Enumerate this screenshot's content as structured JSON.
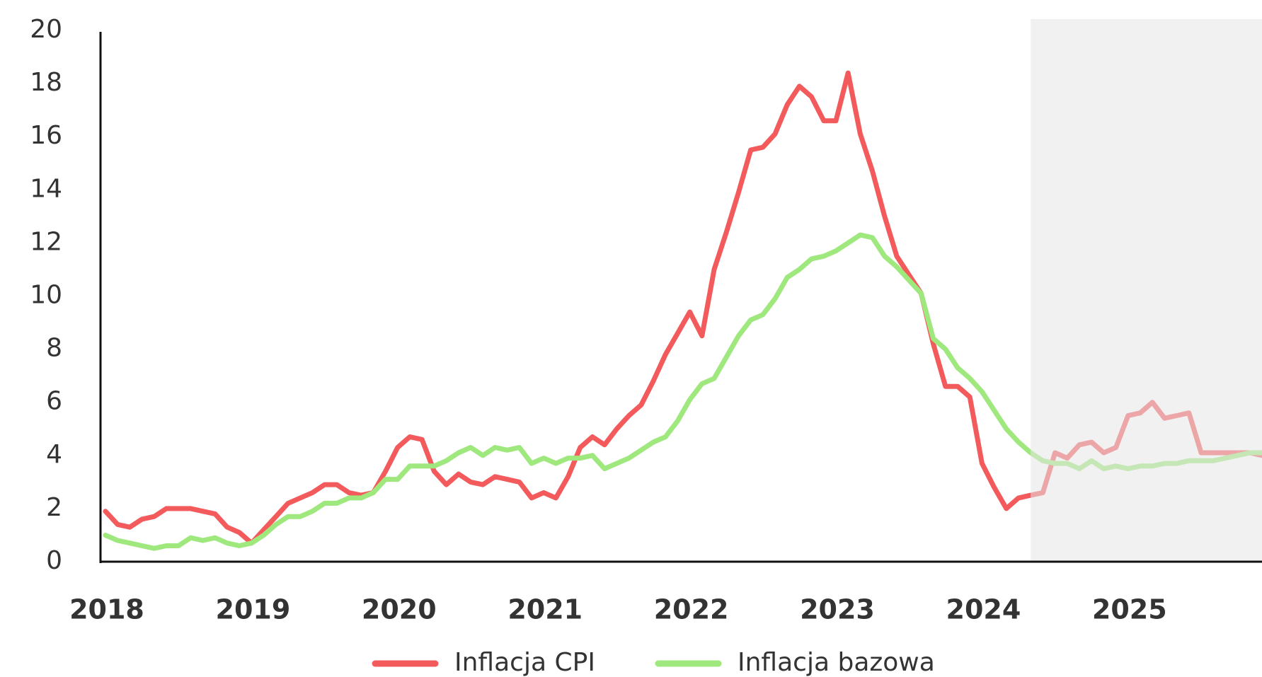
{
  "chart_data": {
    "type": "line",
    "categories": [
      "2018",
      null,
      null,
      null,
      null,
      null,
      null,
      null,
      null,
      null,
      null,
      null,
      "2019",
      null,
      null,
      null,
      null,
      null,
      null,
      null,
      null,
      null,
      null,
      null,
      "2020",
      null,
      null,
      null,
      null,
      null,
      null,
      null,
      null,
      null,
      null,
      null,
      "2021",
      null,
      null,
      null,
      null,
      null,
      null,
      null,
      null,
      null,
      null,
      null,
      "2022",
      null,
      null,
      null,
      null,
      null,
      null,
      null,
      null,
      null,
      null,
      null,
      "2023",
      null,
      null,
      null,
      null,
      null,
      null,
      null,
      null,
      null,
      null,
      null,
      "2024",
      null,
      null,
      null,
      null,
      null,
      null,
      null,
      null,
      null,
      null,
      null,
      "2025",
      null,
      null,
      null,
      null,
      null,
      null,
      null,
      null,
      null,
      null,
      null
    ],
    "series": [
      {
        "name": "Inflacja CPI",
        "color": "#f35a5c",
        "values": [
          1.9,
          1.4,
          1.3,
          1.6,
          1.7,
          2.0,
          2.0,
          2.0,
          1.9,
          1.8,
          1.3,
          1.1,
          0.7,
          1.2,
          1.7,
          2.2,
          2.4,
          2.6,
          2.9,
          2.9,
          2.6,
          2.5,
          2.6,
          3.4,
          4.3,
          4.7,
          4.6,
          3.4,
          2.9,
          3.3,
          3.0,
          2.9,
          3.2,
          3.1,
          3.0,
          2.4,
          2.6,
          2.4,
          3.2,
          4.3,
          4.7,
          4.4,
          5.0,
          5.5,
          5.9,
          6.8,
          7.8,
          8.6,
          9.4,
          8.5,
          11.0,
          12.4,
          13.9,
          15.5,
          15.6,
          16.1,
          17.2,
          17.9,
          17.5,
          16.6,
          16.6,
          18.4,
          16.1,
          14.7,
          13.0,
          11.5,
          10.8,
          10.1,
          8.2,
          6.6,
          6.6,
          6.2,
          3.7,
          2.8,
          2.0,
          2.4,
          2.5,
          2.6,
          4.1,
          3.9,
          4.4,
          4.5,
          4.1,
          4.3,
          5.5,
          5.6,
          6.0,
          5.4,
          5.5,
          5.6,
          4.1,
          4.1,
          4.1,
          4.1,
          4.1,
          4.0
        ]
      },
      {
        "name": "Inflacja bazowa",
        "color": "#9ee87d",
        "values": [
          1.0,
          0.8,
          0.7,
          0.6,
          0.5,
          0.6,
          0.6,
          0.9,
          0.8,
          0.9,
          0.7,
          0.6,
          0.7,
          1.0,
          1.4,
          1.7,
          1.7,
          1.9,
          2.2,
          2.2,
          2.4,
          2.4,
          2.6,
          3.1,
          3.1,
          3.6,
          3.6,
          3.6,
          3.8,
          4.1,
          4.3,
          4.0,
          4.3,
          4.2,
          4.3,
          3.7,
          3.9,
          3.7,
          3.9,
          3.9,
          4.0,
          3.5,
          3.7,
          3.9,
          4.2,
          4.5,
          4.7,
          5.3,
          6.1,
          6.7,
          6.9,
          7.7,
          8.5,
          9.1,
          9.3,
          9.9,
          10.7,
          11.0,
          11.4,
          11.5,
          11.7,
          12.0,
          12.3,
          12.2,
          11.5,
          11.1,
          10.6,
          10.1,
          8.4,
          8.0,
          7.3,
          6.9,
          6.4,
          5.7,
          5.0,
          4.5,
          4.1,
          3.8,
          3.7,
          3.7,
          3.5,
          3.8,
          3.5,
          3.6,
          3.5,
          3.6,
          3.6,
          3.7,
          3.7,
          3.8,
          3.8,
          3.8,
          3.9,
          4.0,
          4.1,
          4.1
        ]
      }
    ],
    "forecast_start_index": 76,
    "ylim": [
      0,
      20
    ],
    "yticks": [
      0,
      2,
      4,
      6,
      8,
      10,
      12,
      14,
      16,
      18,
      20
    ],
    "legend": "bottom"
  }
}
